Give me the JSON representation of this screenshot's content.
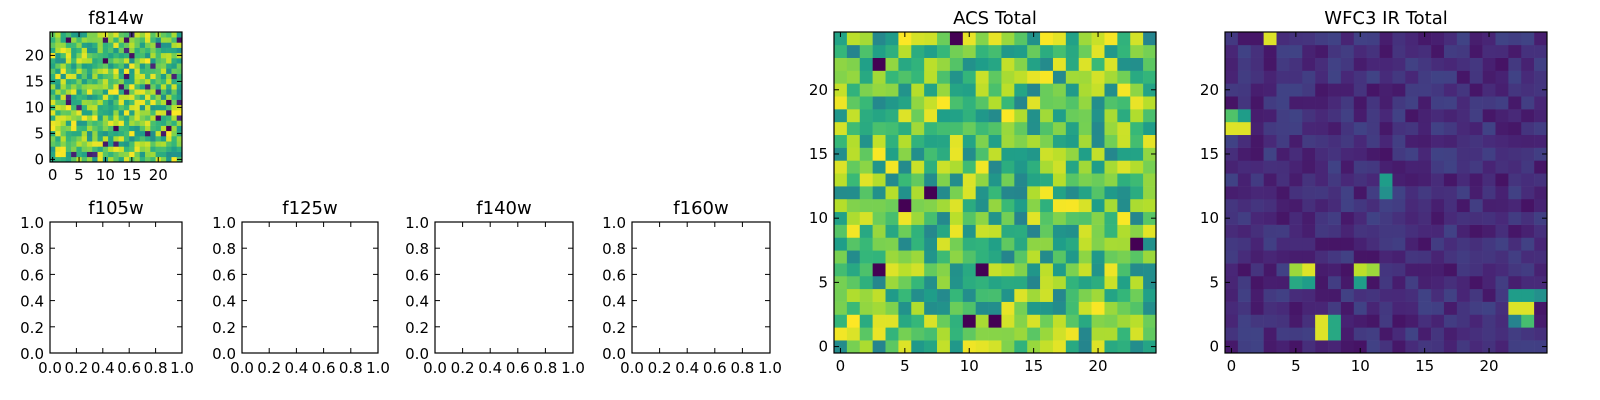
{
  "chart_data": [
    {
      "type": "heatmap",
      "title": "f814w",
      "colormap": "viridis",
      "grid_size": 25,
      "xlim": [
        -0.5,
        24.5
      ],
      "ylim": [
        -0.5,
        24.5
      ],
      "xticks": [
        0,
        5,
        10,
        15,
        20
      ],
      "yticks": [
        0,
        5,
        10,
        15,
        20
      ],
      "value_range": [
        0,
        1
      ],
      "values_note": "25x25 random pixel grid, mostly green-yellow with few dark pixels"
    },
    {
      "type": "line",
      "title": "f105w",
      "xlim": [
        0,
        1
      ],
      "ylim": [
        0,
        1
      ],
      "xticks": [
        "0.0",
        "0.2",
        "0.4",
        "0.6",
        "0.8",
        "1.0"
      ],
      "yticks": [
        "0.0",
        "0.2",
        "0.4",
        "0.6",
        "0.8",
        "1.0"
      ],
      "series": []
    },
    {
      "type": "line",
      "title": "f125w",
      "xlim": [
        0,
        1
      ],
      "ylim": [
        0,
        1
      ],
      "xticks": [
        "0.0",
        "0.2",
        "0.4",
        "0.6",
        "0.8",
        "1.0"
      ],
      "yticks": [
        "0.0",
        "0.2",
        "0.4",
        "0.6",
        "0.8",
        "1.0"
      ],
      "series": []
    },
    {
      "type": "line",
      "title": "f140w",
      "xlim": [
        0,
        1
      ],
      "ylim": [
        0,
        1
      ],
      "xticks": [
        "0.0",
        "0.2",
        "0.4",
        "0.6",
        "0.8",
        "1.0"
      ],
      "yticks": [
        "0.0",
        "0.2",
        "0.4",
        "0.6",
        "0.8",
        "1.0"
      ],
      "series": []
    },
    {
      "type": "line",
      "title": "f160w",
      "xlim": [
        0,
        1
      ],
      "ylim": [
        0,
        1
      ],
      "xticks": [
        "0.0",
        "0.2",
        "0.4",
        "0.6",
        "0.8",
        "1.0"
      ],
      "yticks": [
        "0.0",
        "0.2",
        "0.4",
        "0.6",
        "0.8",
        "1.0"
      ],
      "series": []
    },
    {
      "type": "heatmap",
      "title": "ACS Total",
      "colormap": "viridis",
      "grid_size": 25,
      "xlim": [
        -0.5,
        24.5
      ],
      "ylim": [
        -0.5,
        24.5
      ],
      "xticks": [
        0,
        5,
        10,
        15,
        20
      ],
      "yticks": [
        0,
        5,
        10,
        15,
        20
      ],
      "value_range": [
        0,
        1
      ],
      "dark_pixels": [
        [
          9,
          24
        ],
        [
          3,
          22
        ],
        [
          7,
          12
        ],
        [
          5,
          11
        ],
        [
          23,
          8
        ],
        [
          3,
          6
        ],
        [
          11,
          6
        ],
        [
          10,
          2
        ],
        [
          12,
          2
        ]
      ],
      "values_note": "25x25 pixel grid, mostly green/yellow"
    },
    {
      "type": "heatmap",
      "title": "WFC3 IR Total",
      "colormap": "viridis",
      "grid_size": 25,
      "xlim": [
        -0.5,
        24.5
      ],
      "ylim": [
        -0.5,
        24.5
      ],
      "xticks": [
        0,
        5,
        10,
        15,
        20
      ],
      "yticks": [
        0,
        5,
        10,
        15,
        20
      ],
      "value_range": [
        0,
        1
      ],
      "bright_pixels": [
        {
          "x": 3,
          "y": 24,
          "v": 0.95
        },
        {
          "x": 0,
          "y": 18,
          "v": 0.72
        },
        {
          "x": 1,
          "y": 18,
          "v": 0.55
        },
        {
          "x": 0,
          "y": 17,
          "v": 0.95
        },
        {
          "x": 1,
          "y": 17,
          "v": 0.95
        },
        {
          "x": 12,
          "y": 13,
          "v": 0.55
        },
        {
          "x": 12,
          "y": 12,
          "v": 0.5
        },
        {
          "x": 5,
          "y": 6,
          "v": 0.85
        },
        {
          "x": 6,
          "y": 6,
          "v": 0.95
        },
        {
          "x": 5,
          "y": 5,
          "v": 0.6
        },
        {
          "x": 6,
          "y": 5,
          "v": 0.55
        },
        {
          "x": 10,
          "y": 6,
          "v": 0.9
        },
        {
          "x": 11,
          "y": 6,
          "v": 0.85
        },
        {
          "x": 10,
          "y": 5,
          "v": 0.55
        },
        {
          "x": 7,
          "y": 2,
          "v": 0.95
        },
        {
          "x": 8,
          "y": 2,
          "v": 0.6
        },
        {
          "x": 7,
          "y": 1,
          "v": 0.95
        },
        {
          "x": 8,
          "y": 1,
          "v": 0.6
        },
        {
          "x": 22,
          "y": 4,
          "v": 0.55
        },
        {
          "x": 23,
          "y": 4,
          "v": 0.55
        },
        {
          "x": 24,
          "y": 4,
          "v": 0.5
        },
        {
          "x": 22,
          "y": 3,
          "v": 0.95
        },
        {
          "x": 23,
          "y": 3,
          "v": 0.95
        },
        {
          "x": 22,
          "y": 2,
          "v": 0.45
        },
        {
          "x": 23,
          "y": 2,
          "v": 0.7
        }
      ],
      "values_note": "25x25 pixel grid, mostly dark purple with a few bright sources"
    }
  ]
}
